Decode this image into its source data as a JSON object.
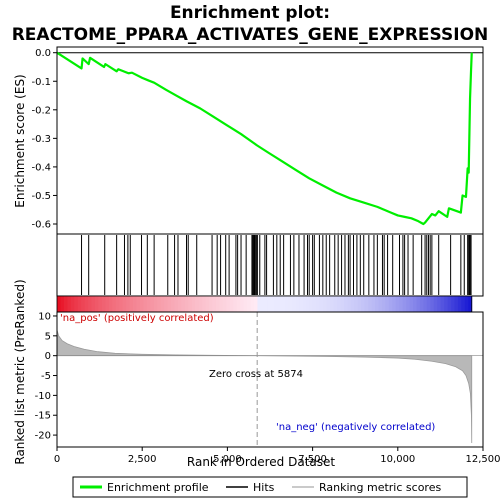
{
  "title_line1": "Enrichment plot:",
  "title_line2": "REACTOME_PPARA_ACTIVATES_GENE_EXPRESSION",
  "chart_data": {
    "type": "line",
    "top_panel": {
      "ylabel": "Enrichment score (ES)",
      "ylim": [
        -0.635,
        0.02
      ],
      "yticks": [
        "0.0",
        "-0.1",
        "-0.2",
        "-0.3",
        "-0.4",
        "-0.5",
        "-0.6"
      ],
      "ytick_values": [
        0,
        -0.1,
        -0.2,
        -0.3,
        -0.4,
        -0.5,
        -0.6
      ],
      "es_curve": {
        "x": [
          0,
          720,
          750,
          930,
          970,
          1380,
          1420,
          1750,
          1800,
          2100,
          2200,
          2500,
          2700,
          2850,
          3200,
          3500,
          3800,
          4200,
          4600,
          5000,
          5400,
          5874,
          6200,
          6600,
          7000,
          7400,
          7800,
          8200,
          8600,
          9000,
          9400,
          9600,
          9800,
          10000,
          10200,
          10400,
          10600,
          10750,
          10800,
          10900,
          11000,
          11100,
          11200,
          11450,
          11500,
          11850,
          11900,
          12000,
          12050,
          12080,
          12100,
          12120,
          12150,
          12170
        ],
        "y": [
          0.0,
          -0.055,
          -0.02,
          -0.04,
          -0.018,
          -0.05,
          -0.04,
          -0.065,
          -0.058,
          -0.072,
          -0.07,
          -0.088,
          -0.098,
          -0.105,
          -0.13,
          -0.15,
          -0.17,
          -0.195,
          -0.225,
          -0.255,
          -0.285,
          -0.325,
          -0.35,
          -0.38,
          -0.41,
          -0.44,
          -0.465,
          -0.49,
          -0.51,
          -0.525,
          -0.54,
          -0.55,
          -0.56,
          -0.57,
          -0.575,
          -0.58,
          -0.59,
          -0.6,
          -0.595,
          -0.58,
          -0.565,
          -0.57,
          -0.555,
          -0.575,
          -0.545,
          -0.56,
          -0.5,
          -0.505,
          -0.405,
          -0.42,
          -0.29,
          -0.16,
          -0.06,
          0.0
        ]
      }
    },
    "hits": [
      720,
      930,
      1400,
      1750,
      1980,
      2080,
      2150,
      2480,
      2650,
      2850,
      3250,
      3450,
      3550,
      3800,
      3850,
      4100,
      4550,
      4700,
      4800,
      4950,
      5050,
      5250,
      5300,
      5400,
      5550,
      5720,
      5750,
      5780,
      5800,
      5830,
      5850,
      5880,
      5950,
      6100,
      6150,
      6350,
      6450,
      6550,
      6650,
      6850,
      6950,
      7100,
      7250,
      7350,
      7400,
      7500,
      7550,
      7700,
      7800,
      7900,
      8000,
      8150,
      8250,
      8350,
      8450,
      8550,
      8600,
      8700,
      8800,
      8900,
      9000,
      9150,
      9300,
      9400,
      9550,
      9600,
      9700,
      9850,
      10050,
      10150,
      10200,
      10300,
      10450,
      10700,
      10800,
      10850,
      10900,
      10950,
      11000,
      11200,
      11550,
      11850,
      11950,
      12050,
      12080,
      12100,
      12120,
      12150
    ],
    "bottom_panel": {
      "ylabel": "Ranked list metric (PreRanked)",
      "ylim": [
        -23,
        11
      ],
      "yticks": [
        "10",
        "5",
        "0",
        "-5",
        "-10",
        "-15",
        "-20"
      ],
      "ytick_values": [
        10,
        5,
        0,
        -5,
        -10,
        -15,
        -20
      ],
      "metric_curve": {
        "x": [
          0,
          50,
          150,
          300,
          500,
          800,
          1200,
          1700,
          2500,
          3500,
          4500,
          5874,
          7000,
          8000,
          9000,
          10000,
          10500,
          11000,
          11400,
          11700,
          11900,
          12000,
          12080,
          12130,
          12160,
          12170
        ],
        "y": [
          6.5,
          5.0,
          3.8,
          3.0,
          2.3,
          1.6,
          1.0,
          0.6,
          0.35,
          0.2,
          0.1,
          0.0,
          -0.1,
          -0.2,
          -0.35,
          -0.6,
          -0.9,
          -1.4,
          -2.0,
          -2.8,
          -3.8,
          -5.0,
          -7.0,
          -9.5,
          -15.0,
          -22.0
        ]
      },
      "zero_cross_label": "Zero cross at 5874",
      "pos_label": "'na_pos' (positively correlated)",
      "neg_label": "'na_neg' (negatively correlated)"
    },
    "xlabel": "Rank in Ordered Dataset",
    "xlim": [
      0,
      12500
    ],
    "xticks": [
      "0",
      "2,500",
      "5,000",
      "7,500",
      "10,000",
      "12,500"
    ],
    "xtick_values": [
      0,
      2500,
      5000,
      7500,
      10000,
      12500
    ],
    "n_genes": 12170,
    "zero_cross": 5874,
    "legend": {
      "placement": "bottom",
      "entries": [
        "Enrichment profile",
        "Hits",
        "Ranking metric scores"
      ]
    },
    "colors": {
      "es": "#00ee00",
      "hits": "#000000",
      "metric": "#b8b8b8",
      "pos_text": "#cc0000",
      "neg_text": "#0000cc"
    }
  }
}
